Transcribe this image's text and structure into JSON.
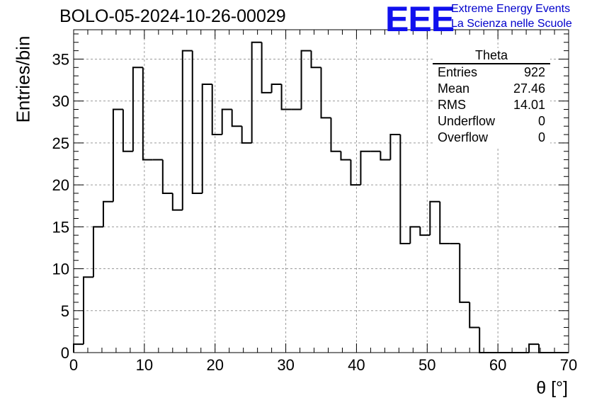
{
  "chart_data": {
    "type": "histogram",
    "title": "BOLO-05-2024-10-26-00029",
    "xlabel": "θ [°]",
    "ylabel": "Entries/bin",
    "xlim": [
      0,
      70
    ],
    "ylim": [
      0,
      38.5
    ],
    "grid": true,
    "bin_width": 1.4,
    "bin_edges_start": 0,
    "x_ticks": [
      "0",
      "10",
      "20",
      "30",
      "40",
      "50",
      "60",
      "70"
    ],
    "y_ticks": [
      "0",
      "5",
      "10",
      "15",
      "20",
      "25",
      "30",
      "35"
    ],
    "values": [
      1,
      9,
      15,
      18,
      29,
      24,
      34,
      23,
      23,
      19,
      17,
      36,
      19,
      32,
      26,
      29,
      27,
      25,
      37,
      31,
      32,
      29,
      29,
      36,
      34,
      28,
      24,
      23,
      20,
      24,
      24,
      23,
      26,
      13,
      15,
      14,
      18,
      13,
      13,
      6,
      3,
      0,
      0,
      0,
      0,
      0,
      1,
      0,
      0,
      0
    ],
    "stats_box": {
      "name": "Theta",
      "rows": [
        {
          "label": "Entries",
          "value": "922"
        },
        {
          "label": "Mean",
          "value": "27.46"
        },
        {
          "label": "RMS",
          "value": "14.01"
        },
        {
          "label": "Underflow",
          "value": "0"
        },
        {
          "label": "Overflow",
          "value": "0"
        }
      ]
    }
  },
  "logo": {
    "mark": "EEE",
    "line1": "Extreme Energy Events",
    "line2": "La Scienza nelle Scuole"
  }
}
